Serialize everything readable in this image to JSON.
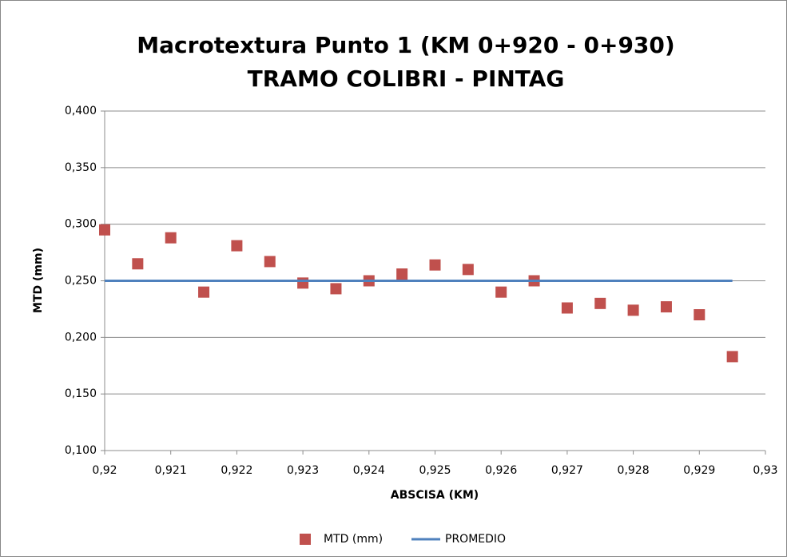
{
  "chart_data": {
    "type": "scatter",
    "title": "Macrotextura Punto 1 (KM 0+920 - 0+930)",
    "subtitle": "TRAMO COLIBRI - PINTAG",
    "x_label": "ABSCISA (KM)",
    "y_label": "MTD (mm)",
    "xlim": [
      0.92,
      0.93
    ],
    "ylim": [
      0.1,
      0.4
    ],
    "xticks": [
      {
        "value": 0.92,
        "label": "0,92"
      },
      {
        "value": 0.921,
        "label": "0,921"
      },
      {
        "value": 0.922,
        "label": "0,922"
      },
      {
        "value": 0.923,
        "label": "0,923"
      },
      {
        "value": 0.924,
        "label": "0,924"
      },
      {
        "value": 0.925,
        "label": "0,925"
      },
      {
        "value": 0.926,
        "label": "0,926"
      },
      {
        "value": 0.927,
        "label": "0,927"
      },
      {
        "value": 0.928,
        "label": "0,928"
      },
      {
        "value": 0.929,
        "label": "0,929"
      },
      {
        "value": 0.93,
        "label": "0,93"
      }
    ],
    "yticks": [
      {
        "value": 0.1,
        "label": "0,100"
      },
      {
        "value": 0.15,
        "label": "0,150"
      },
      {
        "value": 0.2,
        "label": "0,200"
      },
      {
        "value": 0.25,
        "label": "0,250"
      },
      {
        "value": 0.3,
        "label": "0,300"
      },
      {
        "value": 0.35,
        "label": "0,350"
      },
      {
        "value": 0.4,
        "label": "0,400"
      }
    ],
    "grid": true,
    "legend": "bottom",
    "series": [
      {
        "name": "MTD (mm)",
        "color": "#c0504d",
        "mode": "markers",
        "x": [
          0.92,
          0.9205,
          0.921,
          0.9215,
          0.922,
          0.9225,
          0.923,
          0.9235,
          0.924,
          0.9245,
          0.925,
          0.9255,
          0.926,
          0.9265,
          0.927,
          0.9275,
          0.928,
          0.9285,
          0.929,
          0.9295
        ],
        "values": [
          0.295,
          0.265,
          0.288,
          0.24,
          0.281,
          0.267,
          0.248,
          0.243,
          0.25,
          0.256,
          0.264,
          0.26,
          0.24,
          0.25,
          0.226,
          0.23,
          0.224,
          0.227,
          0.22,
          0.183
        ]
      },
      {
        "name": "PROMEDIO",
        "color": "#4f81bd",
        "mode": "line",
        "x": [
          0.92,
          0.9295
        ],
        "values": [
          0.25,
          0.25
        ]
      }
    ]
  }
}
